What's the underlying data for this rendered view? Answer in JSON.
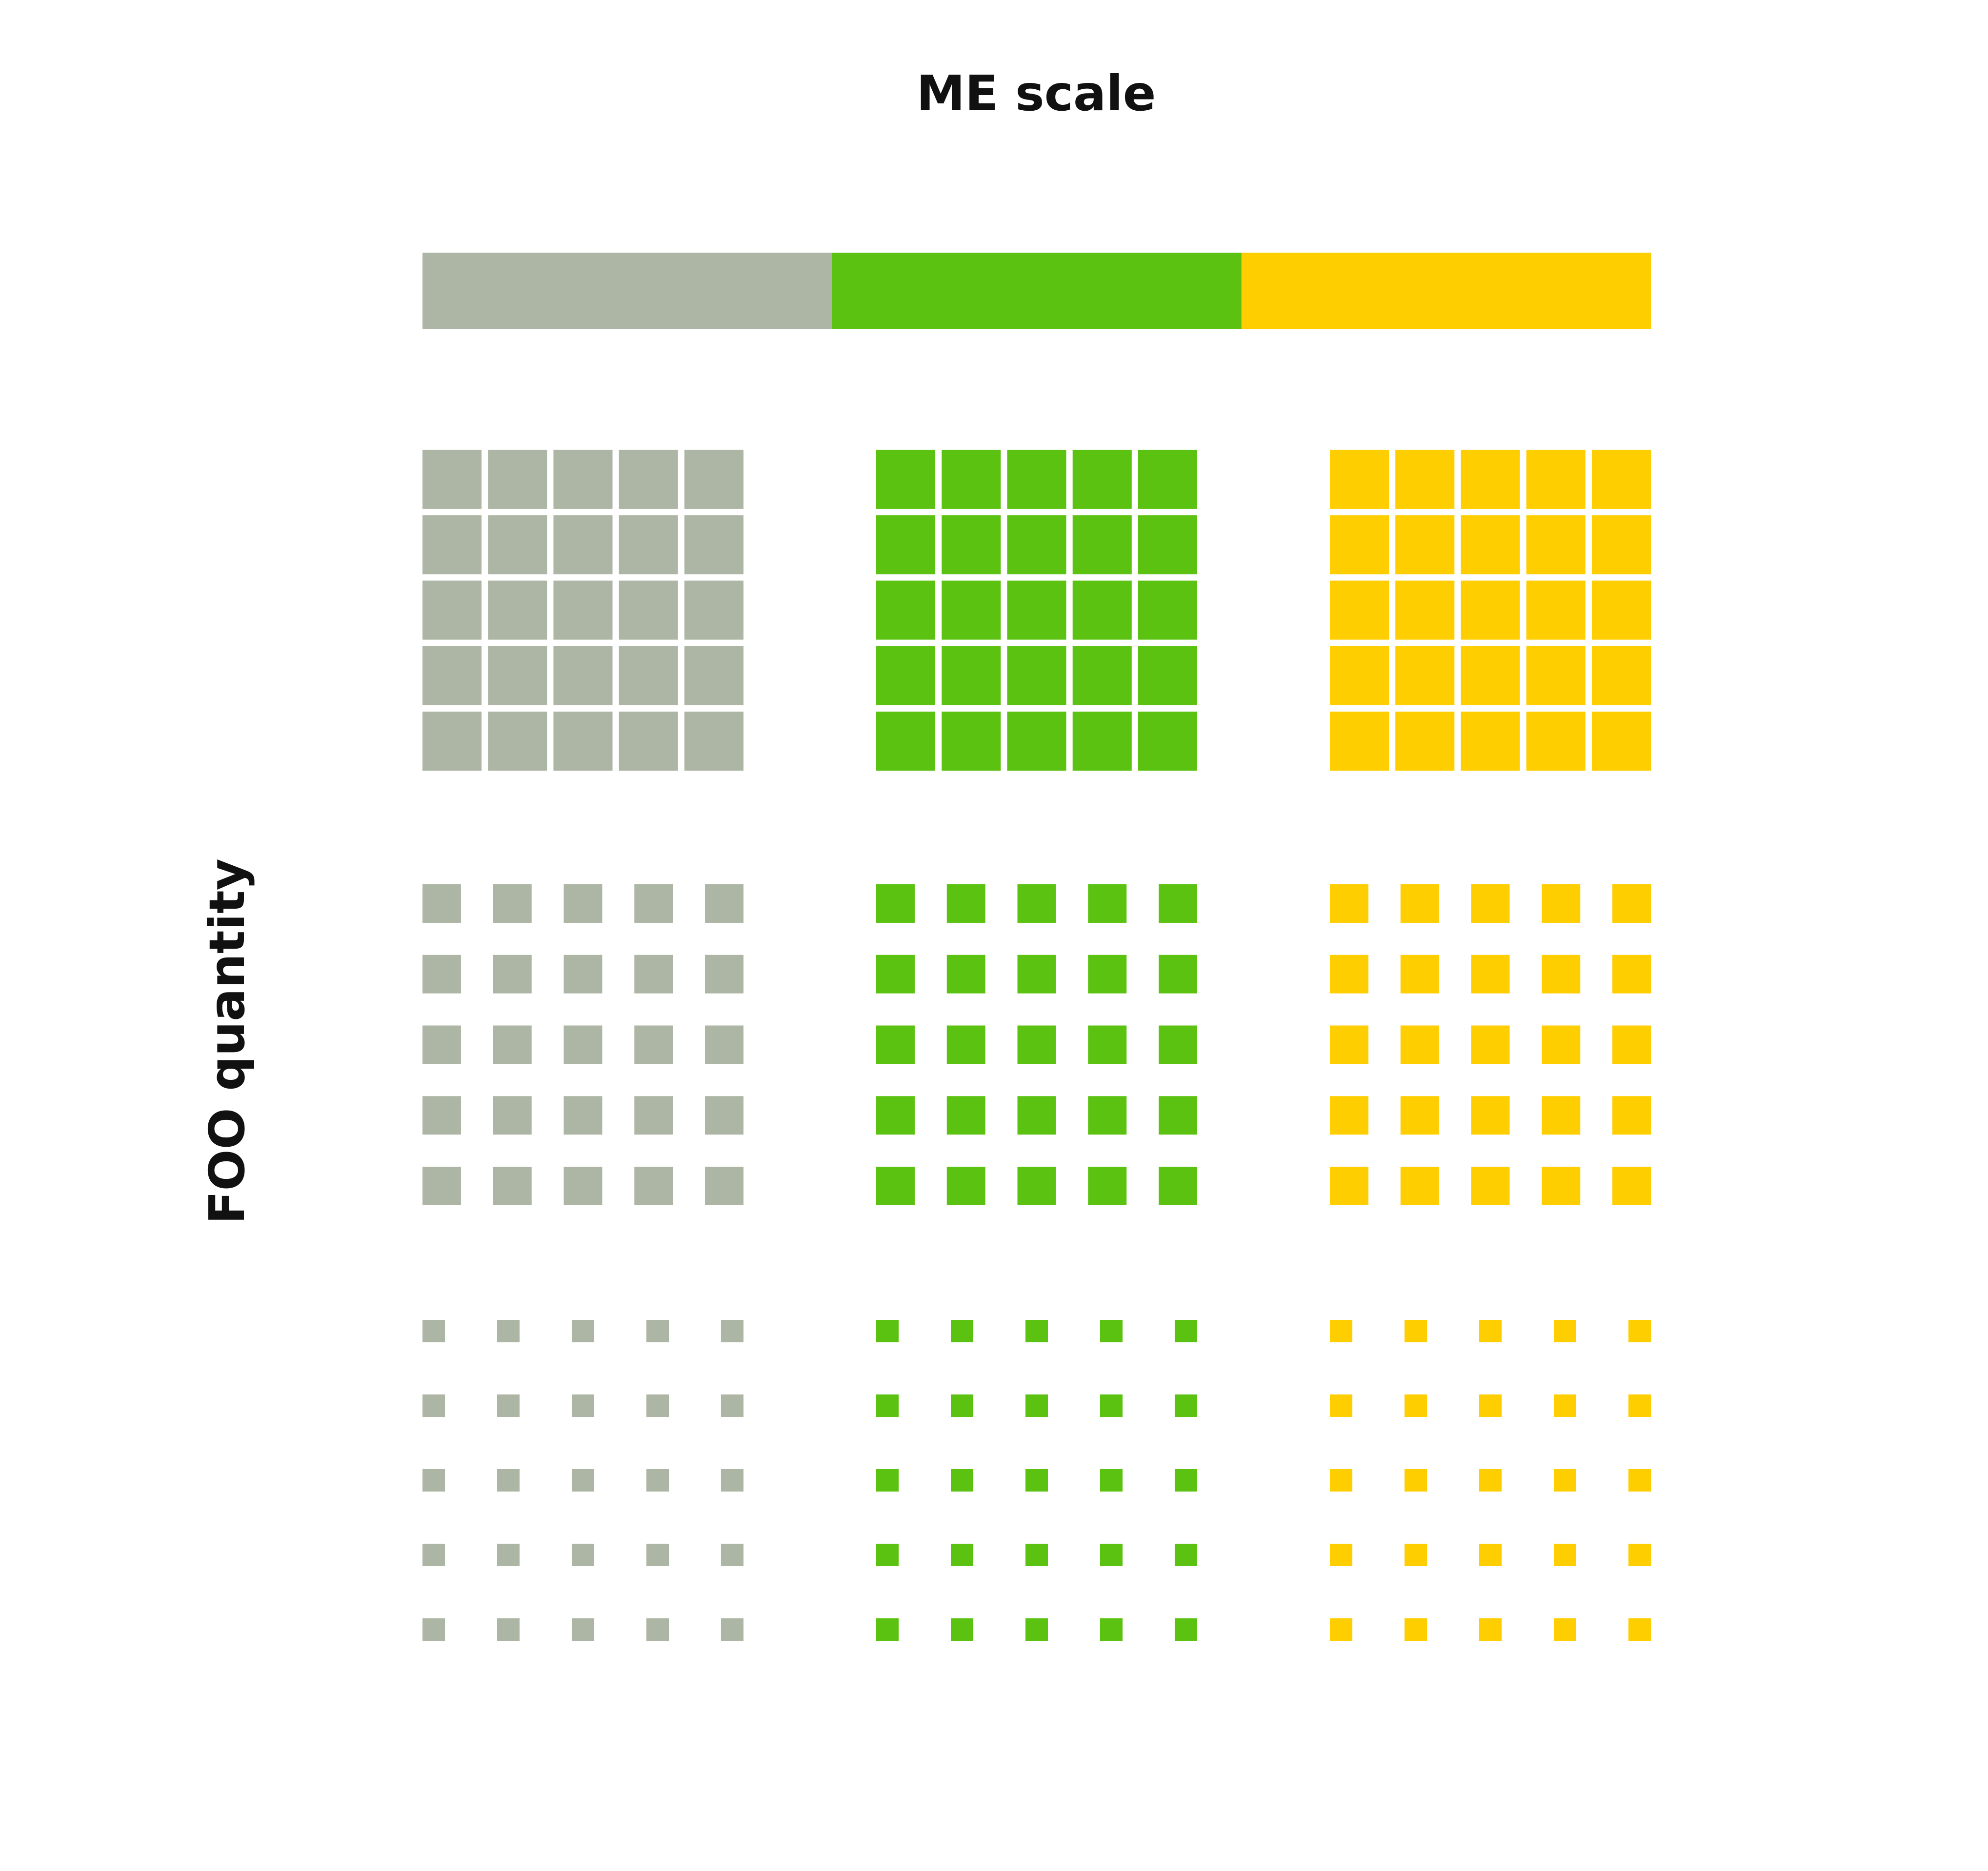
{
  "title": "ME scale",
  "y_axis_label": "FOO quantity",
  "colors": {
    "gray": "#adb6a4",
    "green": "#5cc212",
    "yellow": "#ffce00",
    "background": "#ffffff"
  },
  "scale_bar": {
    "segments": [
      {
        "color_key": "gray"
      },
      {
        "color_key": "green"
      },
      {
        "color_key": "yellow"
      }
    ]
  },
  "grid": {
    "columns": [
      "gray",
      "green",
      "yellow"
    ],
    "rows": [
      {
        "density": "high",
        "square_fill_fraction": 0.92
      },
      {
        "density": "medium",
        "square_fill_fraction": 0.6
      },
      {
        "density": "low",
        "square_fill_fraction": 0.35
      }
    ],
    "cells_per_side": 5
  }
}
